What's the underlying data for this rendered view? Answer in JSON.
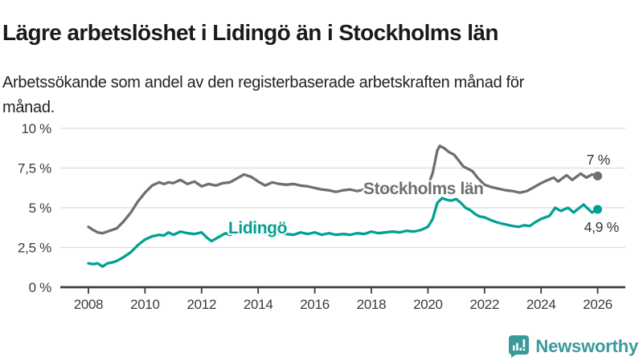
{
  "footer": {
    "brand": "Newsworthy"
  },
  "colors": {
    "stockholm_gray": "#6e6e73",
    "lidingo_teal": "#00a192",
    "axis": "#3d3d3d",
    "grid": "#dcdcdc",
    "tick_text": "#3a3a3a",
    "brand_teal": "#3a999b"
  },
  "chart_data": {
    "type": "line",
    "title": "Lägre arbetslöshet i Lidingö än i Stockholms län",
    "subtitle": "Arbetssökande som andel av den registerbaserade arbetskraften månad för månad.",
    "xlabel": "",
    "ylabel": "",
    "ylim": [
      0,
      10
    ],
    "xlim": [
      2007.5,
      2026.9
    ],
    "grid": true,
    "legend": "inline-labels",
    "y_ticks": [
      {
        "value": 0,
        "label": "0 %"
      },
      {
        "value": 2.5,
        "label": "2,5 %"
      },
      {
        "value": 5,
        "label": "5 %"
      },
      {
        "value": 7.5,
        "label": "7,5 %"
      },
      {
        "value": 10,
        "label": "10 %"
      }
    ],
    "x_ticks": [
      2008,
      2010,
      2012,
      2014,
      2016,
      2018,
      2020,
      2022,
      2024,
      2026
    ],
    "series": [
      {
        "key": "stockholms-lan",
        "name": "Stockholms län",
        "color": "#6e6e73",
        "end_label": "7 %",
        "end_value": 7.0,
        "points": [
          [
            2008.0,
            3.8
          ],
          [
            2008.17,
            3.6
          ],
          [
            2008.33,
            3.45
          ],
          [
            2008.5,
            3.4
          ],
          [
            2008.67,
            3.5
          ],
          [
            2008.83,
            3.6
          ],
          [
            2009.0,
            3.7
          ],
          [
            2009.25,
            4.15
          ],
          [
            2009.5,
            4.7
          ],
          [
            2009.75,
            5.4
          ],
          [
            2010.0,
            5.95
          ],
          [
            2010.25,
            6.4
          ],
          [
            2010.5,
            6.6
          ],
          [
            2010.67,
            6.5
          ],
          [
            2010.83,
            6.6
          ],
          [
            2011.0,
            6.55
          ],
          [
            2011.25,
            6.75
          ],
          [
            2011.5,
            6.5
          ],
          [
            2011.75,
            6.65
          ],
          [
            2012.0,
            6.35
          ],
          [
            2012.25,
            6.5
          ],
          [
            2012.5,
            6.4
          ],
          [
            2012.75,
            6.55
          ],
          [
            2013.0,
            6.6
          ],
          [
            2013.25,
            6.85
          ],
          [
            2013.5,
            7.1
          ],
          [
            2013.75,
            6.95
          ],
          [
            2014.0,
            6.65
          ],
          [
            2014.25,
            6.4
          ],
          [
            2014.5,
            6.6
          ],
          [
            2014.75,
            6.5
          ],
          [
            2015.0,
            6.45
          ],
          [
            2015.25,
            6.5
          ],
          [
            2015.5,
            6.4
          ],
          [
            2015.75,
            6.35
          ],
          [
            2016.0,
            6.25
          ],
          [
            2016.25,
            6.15
          ],
          [
            2016.5,
            6.1
          ],
          [
            2016.75,
            6.0
          ],
          [
            2017.0,
            6.1
          ],
          [
            2017.25,
            6.15
          ],
          [
            2017.5,
            6.05
          ],
          [
            2017.75,
            6.15
          ],
          [
            2018.0,
            6.2
          ],
          [
            2018.25,
            6.1
          ],
          [
            2018.5,
            6.2
          ],
          [
            2018.75,
            6.15
          ],
          [
            2019.0,
            6.2
          ],
          [
            2019.25,
            6.3
          ],
          [
            2019.5,
            6.2
          ],
          [
            2019.75,
            6.3
          ],
          [
            2020.0,
            6.35
          ],
          [
            2020.17,
            7.2
          ],
          [
            2020.33,
            8.6
          ],
          [
            2020.42,
            8.9
          ],
          [
            2020.58,
            8.75
          ],
          [
            2020.75,
            8.5
          ],
          [
            2020.92,
            8.35
          ],
          [
            2021.08,
            8.0
          ],
          [
            2021.25,
            7.6
          ],
          [
            2021.42,
            7.45
          ],
          [
            2021.58,
            7.3
          ],
          [
            2021.75,
            6.9
          ],
          [
            2022.0,
            6.45
          ],
          [
            2022.25,
            6.3
          ],
          [
            2022.5,
            6.2
          ],
          [
            2022.75,
            6.1
          ],
          [
            2023.0,
            6.05
          ],
          [
            2023.25,
            5.95
          ],
          [
            2023.5,
            6.05
          ],
          [
            2023.75,
            6.3
          ],
          [
            2024.0,
            6.55
          ],
          [
            2024.25,
            6.75
          ],
          [
            2024.45,
            6.9
          ],
          [
            2024.6,
            6.65
          ],
          [
            2024.9,
            7.05
          ],
          [
            2025.1,
            6.75
          ],
          [
            2025.4,
            7.15
          ],
          [
            2025.6,
            6.9
          ],
          [
            2025.8,
            7.1
          ],
          [
            2026.0,
            7.0
          ]
        ]
      },
      {
        "key": "lidingo",
        "name": "Lidingö",
        "color": "#00a192",
        "end_label": "4,9 %",
        "end_value": 4.9,
        "points": [
          [
            2008.0,
            1.5
          ],
          [
            2008.17,
            1.45
          ],
          [
            2008.33,
            1.5
          ],
          [
            2008.5,
            1.3
          ],
          [
            2008.67,
            1.5
          ],
          [
            2008.83,
            1.55
          ],
          [
            2009.0,
            1.65
          ],
          [
            2009.25,
            1.9
          ],
          [
            2009.5,
            2.2
          ],
          [
            2009.75,
            2.65
          ],
          [
            2010.0,
            3.0
          ],
          [
            2010.25,
            3.2
          ],
          [
            2010.5,
            3.3
          ],
          [
            2010.67,
            3.25
          ],
          [
            2010.83,
            3.45
          ],
          [
            2011.0,
            3.3
          ],
          [
            2011.25,
            3.5
          ],
          [
            2011.5,
            3.4
          ],
          [
            2011.75,
            3.35
          ],
          [
            2012.0,
            3.45
          ],
          [
            2012.2,
            3.1
          ],
          [
            2012.35,
            2.9
          ],
          [
            2012.6,
            3.15
          ],
          [
            2012.85,
            3.4
          ],
          [
            2013.0,
            3.3
          ],
          [
            2013.25,
            3.5
          ],
          [
            2013.5,
            3.55
          ],
          [
            2013.75,
            3.4
          ],
          [
            2014.0,
            3.5
          ],
          [
            2014.25,
            3.35
          ],
          [
            2014.5,
            3.45
          ],
          [
            2014.75,
            3.4
          ],
          [
            2015.0,
            3.35
          ],
          [
            2015.25,
            3.3
          ],
          [
            2015.5,
            3.45
          ],
          [
            2015.75,
            3.35
          ],
          [
            2016.0,
            3.45
          ],
          [
            2016.25,
            3.3
          ],
          [
            2016.5,
            3.4
          ],
          [
            2016.75,
            3.3
          ],
          [
            2017.0,
            3.35
          ],
          [
            2017.25,
            3.3
          ],
          [
            2017.5,
            3.4
          ],
          [
            2017.75,
            3.35
          ],
          [
            2018.0,
            3.5
          ],
          [
            2018.25,
            3.4
          ],
          [
            2018.5,
            3.45
          ],
          [
            2018.75,
            3.5
          ],
          [
            2019.0,
            3.45
          ],
          [
            2019.25,
            3.55
          ],
          [
            2019.5,
            3.5
          ],
          [
            2019.75,
            3.6
          ],
          [
            2020.0,
            3.8
          ],
          [
            2020.17,
            4.3
          ],
          [
            2020.33,
            5.3
          ],
          [
            2020.5,
            5.6
          ],
          [
            2020.67,
            5.5
          ],
          [
            2020.83,
            5.45
          ],
          [
            2021.0,
            5.55
          ],
          [
            2021.17,
            5.3
          ],
          [
            2021.33,
            5.0
          ],
          [
            2021.5,
            4.85
          ],
          [
            2021.67,
            4.6
          ],
          [
            2021.83,
            4.45
          ],
          [
            2022.0,
            4.4
          ],
          [
            2022.25,
            4.2
          ],
          [
            2022.5,
            4.05
          ],
          [
            2022.75,
            3.95
          ],
          [
            2023.0,
            3.85
          ],
          [
            2023.2,
            3.8
          ],
          [
            2023.4,
            3.9
          ],
          [
            2023.6,
            3.85
          ],
          [
            2023.8,
            4.1
          ],
          [
            2024.0,
            4.3
          ],
          [
            2024.3,
            4.5
          ],
          [
            2024.5,
            5.0
          ],
          [
            2024.7,
            4.8
          ],
          [
            2024.95,
            5.0
          ],
          [
            2025.15,
            4.7
          ],
          [
            2025.5,
            5.2
          ],
          [
            2025.8,
            4.7
          ],
          [
            2026.0,
            4.9
          ]
        ]
      }
    ]
  }
}
